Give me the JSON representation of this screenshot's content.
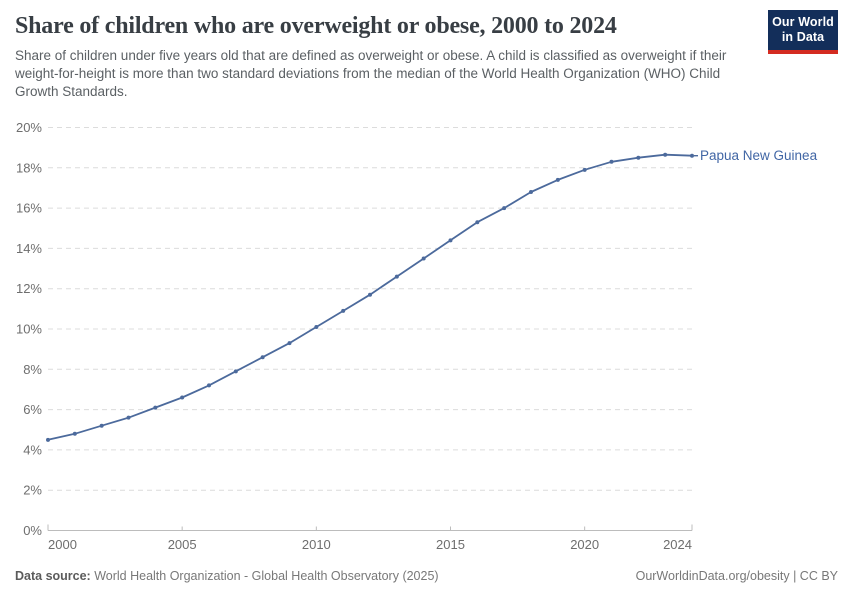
{
  "header": {
    "title": "Share of children who are overweight or obese, 2000 to 2024",
    "subtitle": "Share of children under five years old that are defined as overweight or obese. A child is classified as overweight if their weight-for-height is more than two standard deviations from the median of the World Health Organization (WHO) Child Growth Standards."
  },
  "logo": {
    "line1": "Our World",
    "line2": "in Data",
    "bg_color": "#132e5a",
    "stripe_color": "#d42b21"
  },
  "chart_data": {
    "type": "line",
    "title": "Share of children who are overweight or obese, 2000 to 2024",
    "xlabel": "",
    "ylabel": "",
    "xlim": [
      2000,
      2024
    ],
    "ylim": [
      0,
      20
    ],
    "grid": "horizontal-dashed",
    "legend_position": "end-of-line",
    "x_ticks": [
      2000,
      2005,
      2010,
      2015,
      2020,
      2024
    ],
    "y_ticks": [
      0,
      2,
      4,
      6,
      8,
      10,
      12,
      14,
      16,
      18,
      20
    ],
    "y_tick_suffix": "%",
    "series": [
      {
        "name": "Papua New Guinea",
        "color": "#4c6a9c",
        "label_color": "#4166a5",
        "x": [
          2000,
          2001,
          2002,
          2003,
          2004,
          2005,
          2006,
          2007,
          2008,
          2009,
          2010,
          2011,
          2012,
          2013,
          2014,
          2015,
          2016,
          2017,
          2018,
          2019,
          2020,
          2021,
          2022,
          2023,
          2024
        ],
        "values": [
          4.5,
          4.8,
          5.2,
          5.6,
          6.1,
          6.6,
          7.2,
          7.9,
          8.6,
          9.3,
          10.1,
          10.9,
          11.7,
          12.6,
          13.5,
          14.4,
          15.3,
          16.0,
          16.8,
          17.4,
          17.9,
          18.3,
          18.5,
          18.65,
          18.6
        ]
      }
    ]
  },
  "footer": {
    "datasource_label": "Data source:",
    "datasource_text": " World Health Organization - Global Health Observatory (2025)",
    "rights": "OurWorldinData.org/obesity | CC BY"
  },
  "colors": {
    "gridline": "#dcdcdc",
    "axis": "#bcbcbc",
    "tick_text": "#6e6e6e"
  }
}
